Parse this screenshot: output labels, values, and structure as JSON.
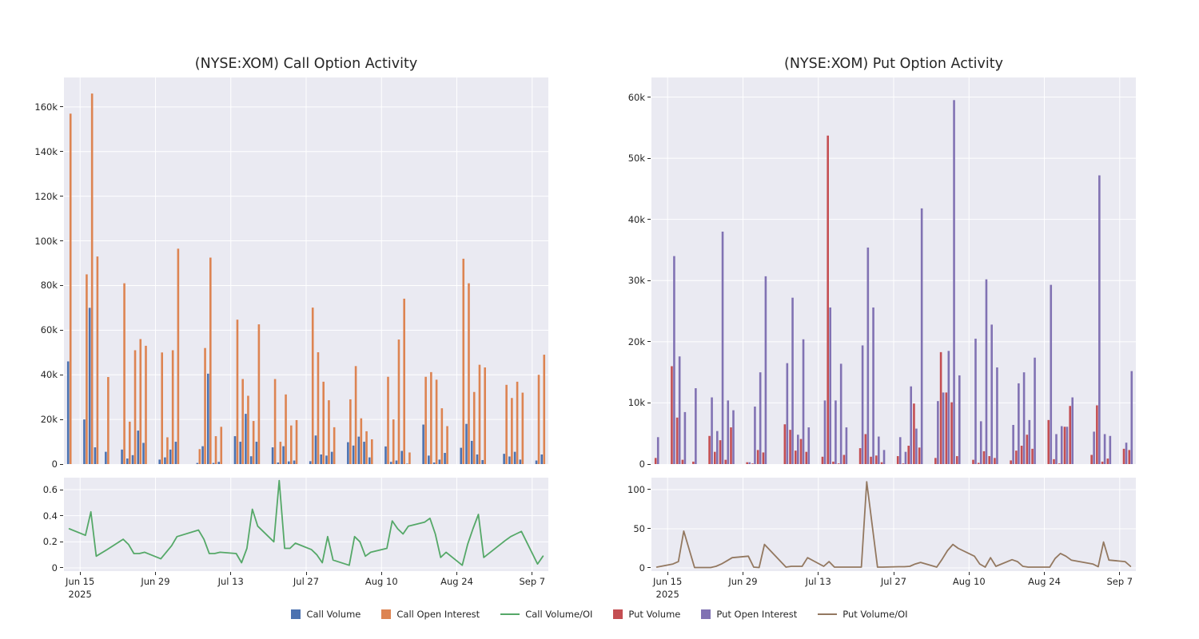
{
  "figure": {
    "background": "#ffffff",
    "axes_background": "#eaeaf2",
    "grid_color": "#ffffff",
    "text_color": "#262626"
  },
  "legend": {
    "items": [
      {
        "label": "Call Volume",
        "color": "#4c72b0",
        "marker": "square"
      },
      {
        "label": "Call Open Interest",
        "color": "#dd8452",
        "marker": "square"
      },
      {
        "label": "Call Volume/OI",
        "color": "#55a868",
        "marker": "line"
      },
      {
        "label": "Put Volume",
        "color": "#c44e52",
        "marker": "square"
      },
      {
        "label": "Put Open Interest",
        "color": "#8172b3",
        "marker": "line-square"
      },
      {
        "label": "Put Volume/OI",
        "color": "#937860",
        "marker": "line"
      }
    ]
  },
  "x_axis": {
    "tick_labels": [
      "Jun 15",
      "Jun 29",
      "Jul 13",
      "Jul 27",
      "Aug 10",
      "Aug 24",
      "Sep 7"
    ],
    "tick_days": [
      2,
      16,
      30,
      44,
      58,
      72,
      86
    ],
    "year_label": "2025",
    "domain_days": [
      -1,
      89
    ],
    "dates": [
      "Jun 13",
      "Jun 16",
      "Jun 17",
      "Jun 18",
      "Jun 20",
      "Jun 23",
      "Jun 24",
      "Jun 25",
      "Jun 26",
      "Jun 27",
      "Jun 30",
      "Jul 1",
      "Jul 2",
      "Jul 3",
      "Jul 7",
      "Jul 8",
      "Jul 9",
      "Jul 10",
      "Jul 11",
      "Jul 14",
      "Jul 15",
      "Jul 16",
      "Jul 17",
      "Jul 18",
      "Jul 21",
      "Jul 22",
      "Jul 23",
      "Jul 24",
      "Jul 25",
      "Jul 28",
      "Jul 29",
      "Jul 30",
      "Jul 31",
      "Aug 1",
      "Aug 4",
      "Aug 5",
      "Aug 6",
      "Aug 7",
      "Aug 8",
      "Aug 11",
      "Aug 12",
      "Aug 13",
      "Aug 14",
      "Aug 15",
      "Aug 18",
      "Aug 19",
      "Aug 20",
      "Aug 21",
      "Aug 22",
      "Aug 25",
      "Aug 26",
      "Aug 27",
      "Aug 28",
      "Aug 29",
      "Sep 2",
      "Sep 3",
      "Sep 4",
      "Sep 5",
      "Sep 8",
      "Sep 9"
    ],
    "date_days": [
      0,
      3,
      4,
      5,
      7,
      10,
      11,
      12,
      13,
      14,
      17,
      18,
      19,
      20,
      24,
      25,
      26,
      27,
      28,
      31,
      32,
      33,
      34,
      35,
      38,
      39,
      40,
      41,
      42,
      45,
      46,
      47,
      48,
      49,
      52,
      53,
      54,
      55,
      56,
      59,
      60,
      61,
      62,
      63,
      66,
      67,
      68,
      69,
      70,
      73,
      74,
      75,
      76,
      77,
      81,
      82,
      83,
      84,
      87,
      88
    ]
  },
  "chart_data": [
    {
      "type": "bar",
      "title": "(NYSE:XOM) Call Option Activity",
      "panel": "call-main",
      "ylim": [
        0,
        173200
      ],
      "y_ticks": [
        0,
        20000,
        40000,
        60000,
        80000,
        100000,
        120000,
        140000,
        160000
      ],
      "y_tick_labels": [
        "0",
        "20k",
        "40k",
        "60k",
        "80k",
        "100k",
        "120k",
        "140k",
        "160k"
      ],
      "series": [
        {
          "name": "Call Volume",
          "color": "#4c72b0",
          "values": [
            46000,
            20000,
            70000,
            7500,
            5500,
            6500,
            2500,
            4000,
            15000,
            9500,
            2000,
            3000,
            6500,
            10000,
            500,
            8000,
            40500,
            500,
            1000,
            12500,
            10000,
            22500,
            3500,
            10000,
            7500,
            700,
            8000,
            1200,
            1600,
            1300,
            12800,
            4300,
            3800,
            5500,
            9800,
            8300,
            12300,
            10000,
            3000,
            7900,
            1000,
            1600,
            5900,
            200,
            17700,
            3800,
            700,
            2000,
            5000,
            7300,
            18000,
            10400,
            4300,
            1800,
            4600,
            3400,
            5500,
            2000,
            1600,
            4300
          ]
        },
        {
          "name": "Call Open Interest",
          "color": "#dd8452",
          "values": [
            157000,
            85000,
            166000,
            93000,
            39000,
            81000,
            19000,
            51000,
            56000,
            53000,
            50000,
            12000,
            51000,
            96500,
            6700,
            52000,
            92500,
            12500,
            16700,
            64700,
            38100,
            30600,
            19300,
            62600,
            38100,
            10000,
            31200,
            17300,
            19700,
            70100,
            50100,
            36900,
            28600,
            16500,
            29000,
            43900,
            20500,
            14700,
            11100,
            39100,
            20000,
            55800,
            74100,
            5200,
            39100,
            41200,
            37800,
            25000,
            17000,
            92000,
            81000,
            32300,
            44500,
            43300,
            35500,
            29600,
            36900,
            32000,
            40000,
            49000
          ]
        }
      ]
    },
    {
      "type": "line",
      "title": "",
      "panel": "call-ratio",
      "ylim": [
        -0.0245,
        0.692
      ],
      "y_ticks": [
        0,
        0.2,
        0.4,
        0.6
      ],
      "y_tick_labels": [
        "0",
        "0.2",
        "0.4",
        "0.6"
      ],
      "series": [
        {
          "name": "Call Volume/OI",
          "color": "#55a868",
          "values": [
            0.3,
            0.25,
            0.43,
            0.09,
            0.14,
            0.22,
            0.18,
            0.11,
            0.11,
            0.12,
            0.07,
            0.12,
            0.17,
            0.24,
            0.29,
            0.22,
            0.11,
            0.11,
            0.12,
            0.11,
            0.04,
            0.15,
            0.45,
            0.32,
            0.2,
            0.67,
            0.15,
            0.15,
            0.19,
            0.14,
            0.1,
            0.04,
            0.24,
            0.06,
            0.02,
            0.24,
            0.2,
            0.09,
            0.12,
            0.15,
            0.36,
            0.3,
            0.26,
            0.32,
            0.35,
            0.38,
            0.26,
            0.08,
            0.12,
            0.02,
            0.18,
            0.3,
            0.41,
            0.08,
            0.21,
            0.24,
            0.26,
            0.28,
            0.03,
            0.09
          ]
        }
      ]
    },
    {
      "type": "bar",
      "title": "(NYSE:XOM) Put Option Activity",
      "panel": "put-main",
      "ylim": [
        0,
        63200
      ],
      "y_ticks": [
        0,
        10000,
        20000,
        30000,
        40000,
        50000,
        60000
      ],
      "y_tick_labels": [
        "0",
        "10k",
        "20k",
        "30k",
        "40k",
        "50k",
        "60k"
      ],
      "series": [
        {
          "name": "Put Volume",
          "color": "#c44e52",
          "values": [
            1000,
            16000,
            7600,
            700,
            400,
            4600,
            2000,
            3900,
            700,
            6000,
            300,
            100,
            2300,
            1900,
            6500,
            5600,
            2200,
            4100,
            2000,
            1200,
            53700,
            400,
            100,
            1500,
            2600,
            4900,
            1200,
            1400,
            300,
            1300,
            100,
            3000,
            9900,
            2700,
            1000,
            18300,
            11700,
            10100,
            1300,
            700,
            200,
            2100,
            1300,
            1000,
            600,
            2200,
            3000,
            4800,
            2500,
            7200,
            800,
            100,
            6100,
            9500,
            1500,
            9600,
            400,
            900,
            2500,
            2300
          ]
        },
        {
          "name": "Put Open Interest",
          "color": "#8172b3",
          "values": [
            4400,
            34000,
            17600,
            8500,
            12400,
            10900,
            5400,
            38000,
            10400,
            8800,
            300,
            9400,
            15000,
            30700,
            16500,
            27200,
            4800,
            20400,
            6000,
            10400,
            25600,
            10400,
            16400,
            6000,
            19400,
            35400,
            25600,
            4500,
            2300,
            4400,
            2000,
            12700,
            5800,
            41800,
            10300,
            11700,
            18500,
            59500,
            14500,
            20500,
            7000,
            30200,
            22800,
            15800,
            6400,
            13200,
            15000,
            7200,
            17400,
            29300,
            4900,
            6200,
            6100,
            10900,
            5300,
            47200,
            4900,
            4600,
            3500,
            15200
          ]
        }
      ]
    },
    {
      "type": "line",
      "title": "",
      "panel": "put-ratio",
      "ylim": [
        -4.1,
        115.3
      ],
      "y_ticks": [
        0,
        50,
        100
      ],
      "y_tick_labels": [
        "0",
        "50",
        "100"
      ],
      "series": [
        {
          "name": "Put Volume/OI",
          "color": "#937860",
          "values": [
            1,
            5,
            8,
            47,
            0.5,
            0.5,
            2,
            5,
            9,
            13,
            15,
            1,
            0.5,
            30,
            1,
            2,
            2,
            2,
            13,
            2,
            8,
            1,
            1,
            1,
            1,
            110,
            55,
            1,
            1,
            1.5,
            1.5,
            2,
            5,
            7,
            1,
            11,
            22,
            30,
            25,
            15,
            5,
            1,
            13,
            2,
            10.5,
            8,
            2,
            1,
            1,
            1,
            12,
            18.5,
            15,
            10,
            5,
            1.5,
            33,
            10,
            8,
            2
          ]
        }
      ]
    }
  ]
}
